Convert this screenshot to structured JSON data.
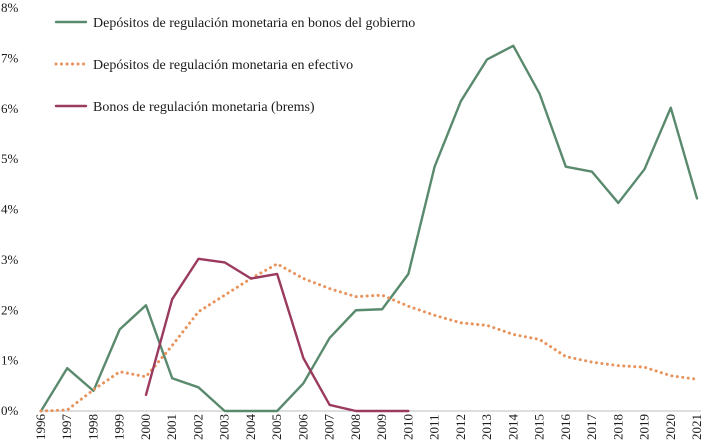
{
  "chart_data": {
    "type": "line",
    "title": "",
    "xlabel": "",
    "ylabel": "",
    "ylim": [
      0,
      8
    ],
    "y_ticks": [
      0,
      1,
      2,
      3,
      4,
      5,
      6,
      7,
      8
    ],
    "y_tick_labels": [
      "0%",
      "1%",
      "2%",
      "3%",
      "4%",
      "5%",
      "6%",
      "7%",
      "8%"
    ],
    "x": [
      1996,
      1997,
      1998,
      1999,
      2000,
      2001,
      2002,
      2003,
      2004,
      2005,
      2006,
      2007,
      2008,
      2009,
      2010,
      2011,
      2012,
      2013,
      2014,
      2015,
      2016,
      2017,
      2018,
      2019,
      2020,
      2021
    ],
    "grid": false,
    "legend_position": "top-left",
    "series": [
      {
        "name": "Depósitos de regulación monetaria en bonos del gobierno",
        "color": "#5a8a6e",
        "style": "solid",
        "values": [
          0.0,
          0.85,
          0.4,
          1.62,
          2.1,
          0.65,
          0.47,
          0.0,
          0.0,
          0.0,
          0.55,
          1.45,
          2.0,
          2.02,
          2.72,
          4.85,
          6.15,
          6.98,
          7.25,
          6.3,
          4.85,
          4.75,
          4.13,
          4.8,
          6.02,
          4.22
        ]
      },
      {
        "name": "Depósitos de regulación monetaria en efectivo",
        "color": "#e8935c",
        "style": "dotted",
        "values": [
          0.0,
          0.02,
          0.42,
          0.78,
          0.68,
          1.3,
          1.97,
          2.3,
          2.63,
          2.92,
          2.63,
          2.43,
          2.27,
          2.3,
          2.08,
          1.9,
          1.75,
          1.7,
          1.52,
          1.42,
          1.08,
          0.97,
          0.9,
          0.87,
          0.7,
          0.63
        ]
      },
      {
        "name": "Bonos de regulación monetaria (brems)",
        "color": "#9a3a5e",
        "style": "solid",
        "values": [
          null,
          null,
          null,
          null,
          0.32,
          2.22,
          3.02,
          2.95,
          2.63,
          2.72,
          1.05,
          0.12,
          0.0,
          0.0,
          0.0,
          null,
          null,
          null,
          null,
          null,
          null,
          null,
          null,
          null,
          null,
          null
        ]
      }
    ]
  }
}
